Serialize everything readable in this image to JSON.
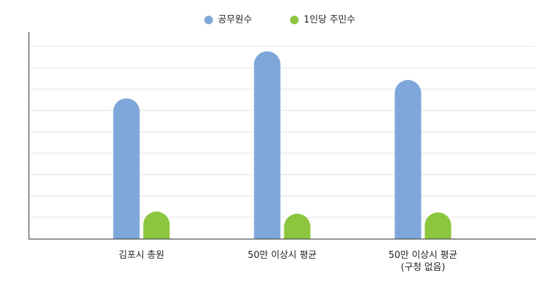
{
  "chart_data": {
    "type": "bar",
    "categories": [
      "김포시 총원",
      "50만 이상시 평균",
      "50만 이상시 평균\n(구청 없음)"
    ],
    "series": [
      {
        "name": "공무원수",
        "color": "#7fa7d9",
        "values": [
          6.57,
          8.77,
          7.43
        ]
      },
      {
        "name": "1인당 주민수",
        "color": "#8cc63f",
        "values": [
          1.27,
          1.17,
          1.23
        ]
      }
    ],
    "ylim": [
      0,
      9.67
    ],
    "yticks": [
      1,
      2,
      3,
      4,
      5,
      6,
      7,
      8,
      9
    ],
    "grid": true
  }
}
